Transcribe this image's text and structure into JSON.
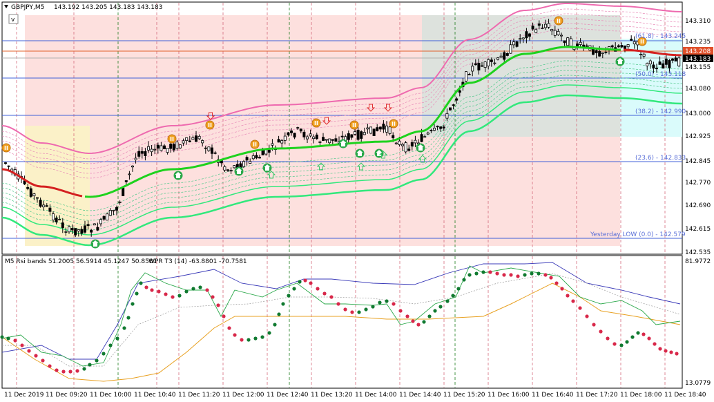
{
  "symbol_header": {
    "label": "GBPJPY,M5",
    "ohlc": "143.192 143.205 143.183 143.183"
  },
  "indicator_header": {
    "rsi_label": "M5 Rsi bands 51.2005 56.5914 45.1247 50.8581",
    "wpr_label": "WPR T3 (14) -63.8801 -70.7581"
  },
  "price_axis": {
    "ticks": [
      "143.310",
      "143.235",
      "143.155",
      "143.080",
      "143.000",
      "142.925",
      "142.845",
      "142.770",
      "142.690",
      "142.615",
      "142.535"
    ],
    "highlight_red": "143.208",
    "highlight_black": "143.183"
  },
  "sub_axis": {
    "top": "81.9772",
    "bottom": "13.0779"
  },
  "time_axis": {
    "labels": [
      "11 Dec 2019",
      "11 Dec 09:20",
      "11 Dec 10:00",
      "11 Dec 10:40",
      "11 Dec 11:20",
      "11 Dec 12:00",
      "11 Dec 12:40",
      "11 Dec 13:20",
      "11 Dec 14:00",
      "11 Dec 14:40",
      "11 Dec 15:20",
      "11 Dec 16:00",
      "11 Dec 16:40",
      "11 Dec 17:20",
      "11 Dec 18:00",
      "11 Dec 18:40"
    ]
  },
  "fib_levels": [
    {
      "label": "(61.8) - 143.245"
    },
    {
      "label": "(50.0) - 143.118"
    },
    {
      "label": "(38.2) - 142.990"
    },
    {
      "label": "(23.6) - 142.833"
    },
    {
      "label": "Yesterday LOW (0.0) - 142.579"
    }
  ],
  "colors": {
    "bull_zone": "#fde0de",
    "range_zone": "#fbf1c8",
    "grey_zone": "#dde2dd",
    "cyan_zone": "#dafbfb",
    "red_line": "#d42020",
    "green_line": "#1ed21e",
    "pink_band": "#ee6aaf",
    "green_band": "#32e87c",
    "fib_line": "#4060d8"
  },
  "icons": {
    "toggle_button": "v"
  }
}
